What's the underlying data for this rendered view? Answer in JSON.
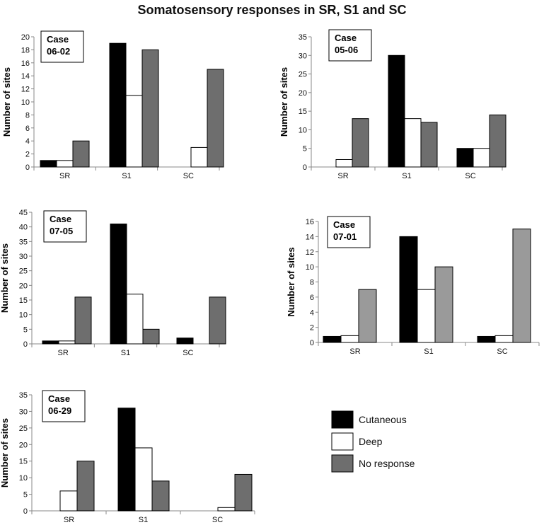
{
  "figure_title": "Somatosensory responses in SR, S1 and SC",
  "legend": {
    "items": [
      {
        "label": "Cutaneous",
        "color": "#000000"
      },
      {
        "label": "Deep",
        "color": "#ffffff"
      },
      {
        "label": "No response",
        "color": "#6e6e6e"
      }
    ]
  },
  "chart_data": [
    {
      "type": "bar",
      "title": "",
      "case_label": [
        "Case",
        "06-02"
      ],
      "xlabel": "",
      "ylabel": "Number of sites",
      "categories": [
        "SR",
        "S1",
        "SC"
      ],
      "ylim": [
        0,
        20
      ],
      "yticks": [
        0,
        2,
        4,
        6,
        8,
        10,
        12,
        14,
        16,
        18,
        20
      ],
      "series": [
        {
          "name": "Cutaneous",
          "color": "#000000",
          "values": [
            1,
            19,
            0
          ]
        },
        {
          "name": "Deep",
          "color": "#ffffff",
          "values": [
            1,
            11,
            3
          ]
        },
        {
          "name": "No response",
          "color": "#6e6e6e",
          "values": [
            4,
            18,
            15
          ]
        }
      ]
    },
    {
      "type": "bar",
      "title": "",
      "case_label": [
        "Case",
        "05-06"
      ],
      "xlabel": "",
      "ylabel": "Number of sites",
      "categories": [
        "SR",
        "S1",
        "SC"
      ],
      "ylim": [
        0,
        35
      ],
      "yticks": [
        0,
        5,
        10,
        15,
        20,
        25,
        30,
        35
      ],
      "series": [
        {
          "name": "Cutaneous",
          "color": "#000000",
          "values": [
            0,
            30,
            5
          ]
        },
        {
          "name": "Deep",
          "color": "#ffffff",
          "values": [
            2,
            13,
            5
          ]
        },
        {
          "name": "No response",
          "color": "#6e6e6e",
          "values": [
            13,
            12,
            14
          ]
        }
      ]
    },
    {
      "type": "bar",
      "title": "",
      "case_label": [
        "Case",
        "07-05"
      ],
      "xlabel": "",
      "ylabel": "Number of sites",
      "categories": [
        "SR",
        "S1",
        "SC"
      ],
      "ylim": [
        0,
        45
      ],
      "yticks": [
        0,
        5,
        10,
        15,
        20,
        25,
        30,
        35,
        40,
        45
      ],
      "series": [
        {
          "name": "Cutaneous",
          "color": "#000000",
          "values": [
            1,
            41,
            2
          ]
        },
        {
          "name": "Deep",
          "color": "#ffffff",
          "values": [
            1,
            17,
            0
          ]
        },
        {
          "name": "No response",
          "color": "#6e6e6e",
          "values": [
            16,
            5,
            16
          ]
        }
      ]
    },
    {
      "type": "bar",
      "title": "",
      "case_label": [
        "Case",
        "07-01"
      ],
      "xlabel": "",
      "ylabel": "Number of sites",
      "categories": [
        "SR",
        "S1",
        "SC"
      ],
      "ylim": [
        0,
        16
      ],
      "yticks": [
        0,
        2,
        4,
        6,
        8,
        10,
        12,
        14,
        16
      ],
      "series": [
        {
          "name": "Cutaneous",
          "color": "#000000",
          "values": [
            0.8,
            14,
            0.8
          ]
        },
        {
          "name": "Deep",
          "color": "#ffffff",
          "values": [
            0.9,
            7,
            0.9
          ]
        },
        {
          "name": "No response",
          "color": "#9a9a9a",
          "values": [
            7,
            10,
            15
          ]
        }
      ]
    },
    {
      "type": "bar",
      "title": "",
      "case_label": [
        "Case",
        "06-29"
      ],
      "xlabel": "",
      "ylabel": "Number of sites",
      "categories": [
        "SR",
        "S1",
        "SC"
      ],
      "ylim": [
        0,
        35
      ],
      "yticks": [
        0,
        5,
        10,
        15,
        20,
        25,
        30,
        35
      ],
      "series": [
        {
          "name": "Cutaneous",
          "color": "#000000",
          "values": [
            0,
            31,
            0
          ]
        },
        {
          "name": "Deep",
          "color": "#ffffff",
          "values": [
            6,
            19,
            1
          ]
        },
        {
          "name": "No response",
          "color": "#6e6e6e",
          "values": [
            15,
            9,
            11
          ]
        }
      ]
    }
  ]
}
